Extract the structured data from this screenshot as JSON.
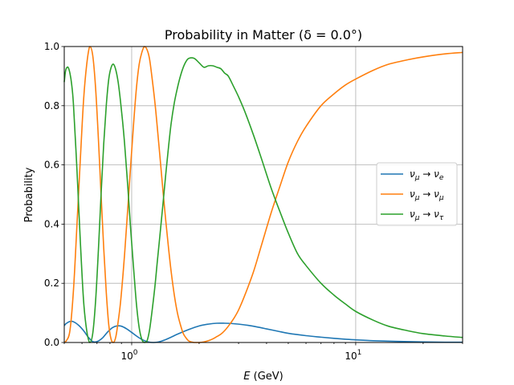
{
  "chart_data": {
    "type": "line",
    "title": "Probability in Matter (δ = 0.0°)",
    "xlabel_var": "E",
    "xlabel_unit": " (GeV)",
    "ylabel": "Probability",
    "xscale": "log",
    "xlim": [
      0.5,
      30
    ],
    "ylim": [
      0,
      1
    ],
    "yticks": [
      0.0,
      0.2,
      0.4,
      0.6,
      0.8,
      1.0
    ],
    "ytick_labels": [
      "0.0",
      "0.2",
      "0.4",
      "0.6",
      "0.8",
      "1.0"
    ],
    "xticks_major": [
      1,
      10
    ],
    "xtick_base": "10",
    "xtick_exponents": [
      "0",
      "1"
    ],
    "grid": true,
    "legend_position": "center-right",
    "series": [
      {
        "name": "νμ → νe",
        "label_parts": [
          "ν",
          "μ",
          " → ",
          "ν",
          "e"
        ],
        "color": "#1f77b4",
        "x": [
          0.5,
          0.51,
          0.53,
          0.55,
          0.58,
          0.61,
          0.64,
          0.67,
          0.7,
          0.74,
          0.78,
          0.82,
          0.86,
          0.9,
          0.95,
          1.0,
          1.05,
          1.1,
          1.15,
          1.2,
          1.25,
          1.3,
          1.35,
          1.4,
          1.5,
          1.6,
          1.8,
          2.0,
          2.2,
          2.4,
          2.6,
          2.8,
          3.0,
          3.3,
          3.6,
          4.0,
          4.5,
          5.0,
          6.0,
          7.0,
          8.0,
          9.0,
          10.0,
          12.0,
          15.0,
          20.0,
          25.0,
          30.0
        ],
        "y": [
          0.057,
          0.064,
          0.071,
          0.07,
          0.058,
          0.04,
          0.018,
          0.003,
          0.003,
          0.015,
          0.035,
          0.05,
          0.056,
          0.055,
          0.046,
          0.034,
          0.022,
          0.012,
          0.005,
          0.001,
          0.0,
          0.001,
          0.004,
          0.008,
          0.018,
          0.028,
          0.044,
          0.056,
          0.062,
          0.065,
          0.065,
          0.064,
          0.062,
          0.058,
          0.053,
          0.046,
          0.038,
          0.031,
          0.023,
          0.018,
          0.014,
          0.011,
          0.009,
          0.006,
          0.004,
          0.002,
          0.001,
          0.001
        ]
      },
      {
        "name": "νμ → νμ",
        "label_parts": [
          "ν",
          "μ",
          " → ",
          "ν",
          "μ"
        ],
        "color": "#ff7f0e",
        "x": [
          0.5,
          0.51,
          0.53,
          0.55,
          0.57,
          0.59,
          0.61,
          0.63,
          0.65,
          0.67,
          0.69,
          0.71,
          0.73,
          0.75,
          0.77,
          0.79,
          0.81,
          0.83,
          0.85,
          0.87,
          0.89,
          0.91,
          0.93,
          0.96,
          0.99,
          1.02,
          1.05,
          1.08,
          1.11,
          1.14,
          1.17,
          1.2,
          1.23,
          1.27,
          1.3,
          1.34,
          1.38,
          1.42,
          1.46,
          1.5,
          1.55,
          1.6,
          1.65,
          1.7,
          1.75,
          1.8,
          1.9,
          2.0,
          2.1,
          2.2,
          2.3,
          2.4,
          2.5,
          2.6,
          2.7,
          2.85,
          3.0,
          3.2,
          3.5,
          3.8,
          4.2,
          4.6,
          5.0,
          5.5,
          6.0,
          7.0,
          8.0,
          9.0,
          10.0,
          12.0,
          14.0,
          17.0,
          20.0,
          25.0,
          30.0
        ],
        "y": [
          0.0,
          0.005,
          0.04,
          0.18,
          0.4,
          0.62,
          0.82,
          0.94,
          1.0,
          0.97,
          0.86,
          0.69,
          0.5,
          0.32,
          0.17,
          0.06,
          0.01,
          0.0,
          0.02,
          0.07,
          0.13,
          0.21,
          0.3,
          0.45,
          0.6,
          0.74,
          0.86,
          0.94,
          0.98,
          1.0,
          0.99,
          0.96,
          0.9,
          0.81,
          0.73,
          0.62,
          0.51,
          0.41,
          0.32,
          0.24,
          0.16,
          0.1,
          0.06,
          0.03,
          0.015,
          0.005,
          0.0,
          0.0,
          0.002,
          0.006,
          0.012,
          0.02,
          0.028,
          0.04,
          0.055,
          0.08,
          0.11,
          0.16,
          0.24,
          0.33,
          0.44,
          0.53,
          0.61,
          0.68,
          0.73,
          0.8,
          0.84,
          0.87,
          0.89,
          0.92,
          0.94,
          0.955,
          0.965,
          0.975,
          0.98
        ]
      },
      {
        "name": "νμ → ντ",
        "label_parts": [
          "ν",
          "μ",
          " → ",
          "ν",
          "τ"
        ],
        "color": "#2ca02c",
        "x": [
          0.5,
          0.505,
          0.51,
          0.52,
          0.53,
          0.54,
          0.55,
          0.57,
          0.59,
          0.61,
          0.63,
          0.65,
          0.67,
          0.69,
          0.71,
          0.73,
          0.75,
          0.77,
          0.79,
          0.81,
          0.83,
          0.85,
          0.87,
          0.89,
          0.91,
          0.93,
          0.96,
          0.99,
          1.02,
          1.05,
          1.08,
          1.11,
          1.14,
          1.17,
          1.2,
          1.23,
          1.27,
          1.3,
          1.34,
          1.38,
          1.42,
          1.46,
          1.5,
          1.55,
          1.6,
          1.65,
          1.7,
          1.75,
          1.8,
          1.9,
          2.0,
          2.1,
          2.2,
          2.3,
          2.4,
          2.5,
          2.6,
          2.7,
          2.85,
          3.0,
          3.2,
          3.5,
          3.8,
          4.2,
          4.6,
          5.0,
          5.5,
          6.0,
          7.0,
          8.0,
          9.0,
          10.0,
          12.0,
          14.0,
          17.0,
          20.0,
          25.0,
          30.0
        ],
        "y": [
          0.88,
          0.91,
          0.925,
          0.93,
          0.91,
          0.87,
          0.8,
          0.58,
          0.34,
          0.14,
          0.04,
          0.0,
          0.03,
          0.14,
          0.31,
          0.5,
          0.67,
          0.8,
          0.89,
          0.93,
          0.94,
          0.92,
          0.88,
          0.82,
          0.75,
          0.67,
          0.53,
          0.38,
          0.25,
          0.13,
          0.05,
          0.01,
          0.0,
          0.005,
          0.04,
          0.1,
          0.19,
          0.27,
          0.37,
          0.47,
          0.57,
          0.66,
          0.74,
          0.81,
          0.86,
          0.9,
          0.93,
          0.95,
          0.96,
          0.96,
          0.945,
          0.93,
          0.935,
          0.935,
          0.93,
          0.925,
          0.91,
          0.9,
          0.865,
          0.83,
          0.78,
          0.7,
          0.62,
          0.52,
          0.44,
          0.37,
          0.3,
          0.26,
          0.2,
          0.16,
          0.13,
          0.105,
          0.075,
          0.055,
          0.04,
          0.03,
          0.022,
          0.017
        ]
      }
    ]
  }
}
